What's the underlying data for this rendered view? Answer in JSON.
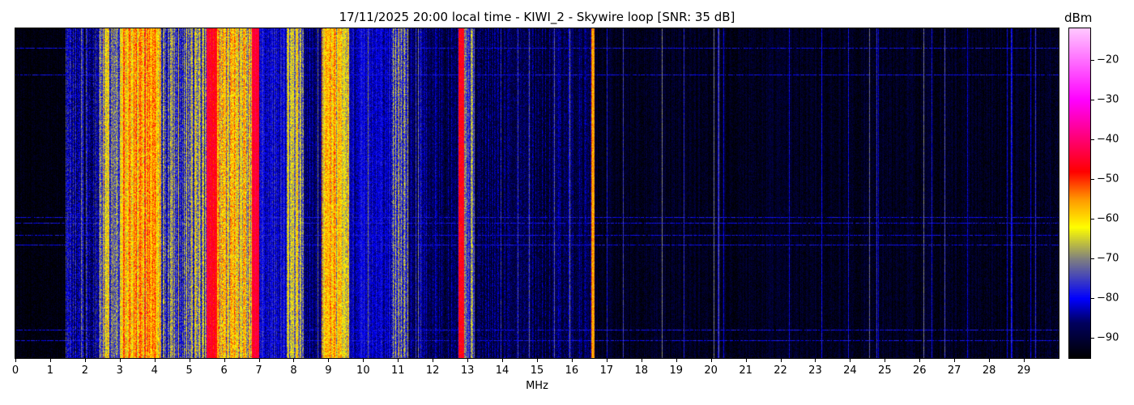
{
  "chart_data": {
    "type": "heatmap",
    "title": "17/11/2025 20:00 local time - KIWI_2 - Skywire loop [SNR: 35 dB]",
    "xlabel": "MHz",
    "ylabel": "",
    "xlim": [
      0,
      30
    ],
    "xticks": [
      "0",
      "1",
      "2",
      "3",
      "4",
      "5",
      "6",
      "7",
      "8",
      "9",
      "10",
      "11",
      "12",
      "13",
      "14",
      "15",
      "16",
      "17",
      "18",
      "19",
      "20",
      "21",
      "22",
      "23",
      "24",
      "25",
      "26",
      "27",
      "28",
      "29"
    ],
    "colorbar": {
      "label": "dBm",
      "range": [
        -95,
        -12
      ],
      "ticks": [
        "-20",
        "-30",
        "-40",
        "-50",
        "-60",
        "-70",
        "-80",
        "-90"
      ],
      "tick_values": [
        -20,
        -30,
        -40,
        -50,
        -60,
        -70,
        -80,
        -90
      ],
      "colormap": [
        {
          "v": -95,
          "color": "#000000"
        },
        {
          "v": -86,
          "color": "#000060"
        },
        {
          "v": -80,
          "color": "#0000ff"
        },
        {
          "v": -70,
          "color": "#808080"
        },
        {
          "v": -62,
          "color": "#ffff00"
        },
        {
          "v": -55,
          "color": "#ff9900"
        },
        {
          "v": -48,
          "color": "#ff0000"
        },
        {
          "v": -30,
          "color": "#ff00ff"
        },
        {
          "v": -12,
          "color": "#ffc8ff"
        }
      ]
    },
    "bands_mhz_dbm": [
      {
        "from": 0.0,
        "to": 1.45,
        "level": -94,
        "spread": 2
      },
      {
        "from": 1.45,
        "to": 2.4,
        "level": -84,
        "spread": 10
      },
      {
        "from": 2.4,
        "to": 3.0,
        "level": -70,
        "spread": 14
      },
      {
        "from": 3.0,
        "to": 4.2,
        "level": -57,
        "spread": 10
      },
      {
        "from": 4.2,
        "to": 5.5,
        "level": -72,
        "spread": 14
      },
      {
        "from": 5.5,
        "to": 5.8,
        "level": -47,
        "spread": 4
      },
      {
        "from": 5.8,
        "to": 6.8,
        "level": -63,
        "spread": 12
      },
      {
        "from": 6.8,
        "to": 7.0,
        "level": -45,
        "spread": 3
      },
      {
        "from": 7.0,
        "to": 7.8,
        "level": -81,
        "spread": 6
      },
      {
        "from": 7.8,
        "to": 8.3,
        "level": -68,
        "spread": 12
      },
      {
        "from": 8.3,
        "to": 8.8,
        "level": -86,
        "spread": 6
      },
      {
        "from": 8.8,
        "to": 9.6,
        "level": -62,
        "spread": 10
      },
      {
        "from": 9.6,
        "to": 10.8,
        "level": -82,
        "spread": 5
      },
      {
        "from": 10.8,
        "to": 11.3,
        "level": -72,
        "spread": 14
      },
      {
        "from": 11.3,
        "to": 12.75,
        "level": -86,
        "spread": 6
      },
      {
        "from": 12.75,
        "to": 12.9,
        "level": -46,
        "spread": 4
      },
      {
        "from": 12.9,
        "to": 13.2,
        "level": -74,
        "spread": 10
      },
      {
        "from": 13.2,
        "to": 16.55,
        "level": -88,
        "spread": 6
      },
      {
        "from": 16.55,
        "to": 16.65,
        "level": -55,
        "spread": 3
      },
      {
        "from": 16.65,
        "to": 30.0,
        "level": -92,
        "spread": 3
      }
    ]
  }
}
